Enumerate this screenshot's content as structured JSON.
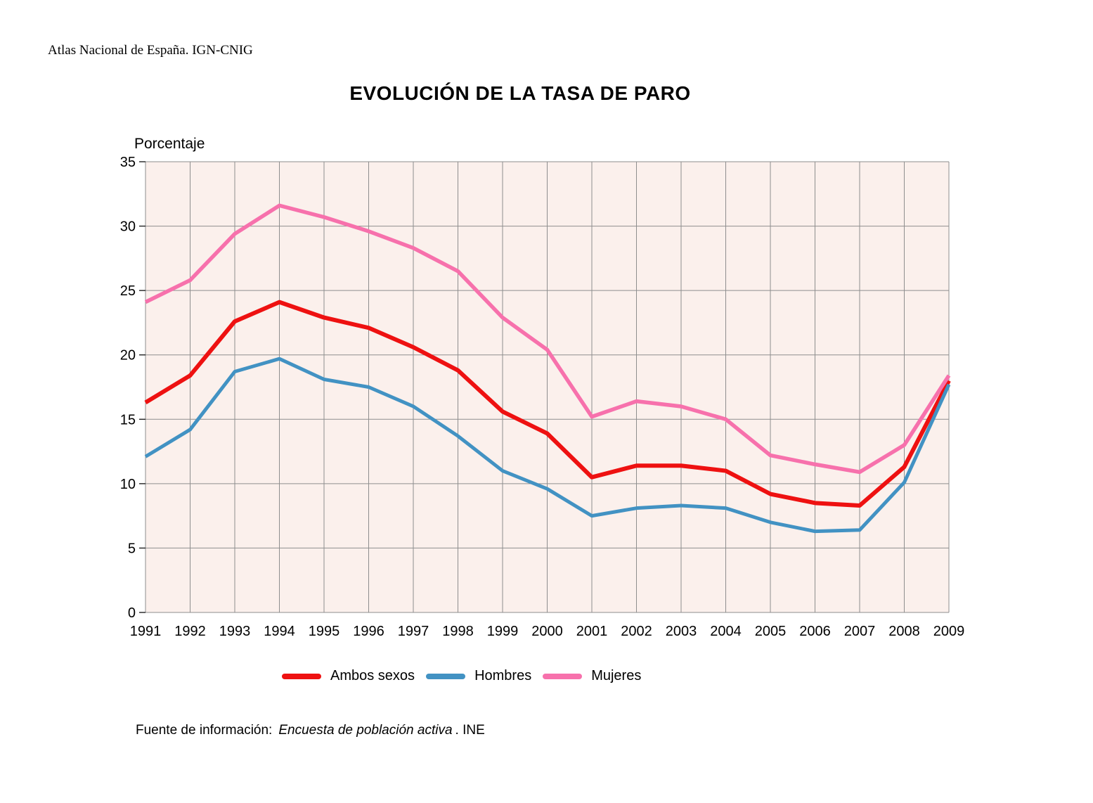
{
  "header": {
    "text": "Atlas Nacional de España. IGN-CNIG"
  },
  "chart_data": {
    "type": "line",
    "title": "EVOLUCIÓN DE LA TASA DE PARO",
    "ylabel": "Porcentaje",
    "xlabel": "",
    "x": [
      1991,
      1992,
      1993,
      1994,
      1995,
      1996,
      1997,
      1998,
      1999,
      2000,
      2001,
      2002,
      2003,
      2004,
      2005,
      2006,
      2007,
      2008,
      2009
    ],
    "series": [
      {
        "name": "Ambos sexos",
        "color": "#ee1111",
        "stroke_width": 6,
        "values": [
          16.3,
          18.4,
          22.6,
          24.1,
          22.9,
          22.1,
          20.6,
          18.8,
          15.6,
          13.9,
          10.5,
          11.4,
          11.4,
          11.0,
          9.2,
          8.5,
          8.3,
          11.3,
          18.0
        ]
      },
      {
        "name": "Hombres",
        "color": "#4292c3",
        "stroke_width": 5,
        "values": [
          12.1,
          14.2,
          18.7,
          19.7,
          18.1,
          17.5,
          16.0,
          13.7,
          11.0,
          9.6,
          7.5,
          8.1,
          8.3,
          8.1,
          7.0,
          6.3,
          6.4,
          10.1,
          17.7
        ]
      },
      {
        "name": "Mujeres",
        "color": "#f771ac",
        "stroke_width": 5.5,
        "values": [
          24.1,
          25.8,
          29.4,
          31.6,
          30.7,
          29.6,
          28.3,
          26.5,
          22.9,
          20.4,
          15.2,
          16.4,
          16.0,
          15.0,
          12.2,
          11.5,
          10.9,
          13.0,
          18.4
        ]
      }
    ],
    "ylim": [
      0,
      35
    ],
    "ytick_step": 5,
    "grid": true,
    "legend_position": "bottom",
    "plot_bg_color": "#fbf0ec",
    "grid_color": "#8e8e8e",
    "axis_tick_color": "#222222"
  },
  "source": {
    "prefix": "Fuente de información:",
    "publication": "Encuesta de población activa",
    "suffix": ". INE"
  }
}
